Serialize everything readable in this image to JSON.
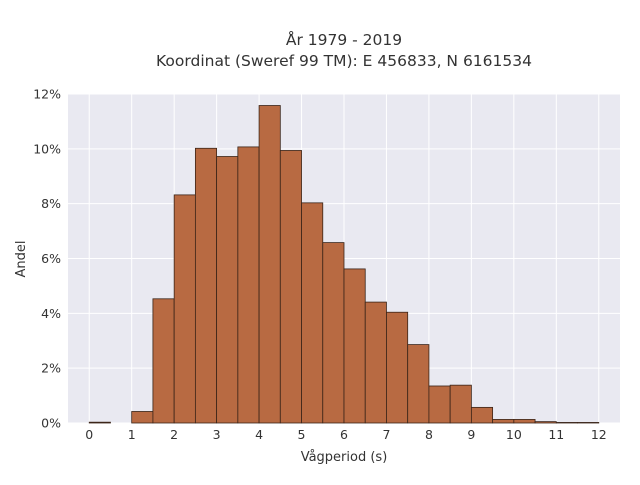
{
  "title": "År 1979 - 2019",
  "subtitle": "Koordinat (Sweref 99 TM): E 456833, N 6161534",
  "colors": {
    "plot_background": "#e9e9f1",
    "bar_fill": "#b86a42",
    "bar_stroke": "#3a2418",
    "grid": "#ffffff"
  },
  "chart_data": {
    "type": "bar",
    "title": "År 1979 - 2019",
    "subtitle": "Koordinat (Sweref 99 TM): E 456833, N 6161534",
    "xlabel": "Vågperiod (s)",
    "ylabel": "Andel",
    "bin_width": 0.5,
    "bins_left_edge": [
      0,
      0.5,
      1,
      1.5,
      2,
      2.5,
      3,
      3.5,
      4,
      4.5,
      5,
      5.5,
      6,
      6.5,
      7,
      7.5,
      8,
      8.5,
      9,
      9.5,
      10,
      10.5,
      11,
      11.5
    ],
    "values": [
      0.03,
      0,
      0.42,
      4.53,
      8.32,
      10.02,
      9.72,
      10.07,
      11.58,
      9.94,
      8.03,
      6.58,
      5.62,
      4.41,
      4.04,
      2.86,
      1.35,
      1.38,
      0.57,
      0.13,
      0.13,
      0.05,
      0.02,
      0.02
    ],
    "xlim": [
      -0.5,
      12.5
    ],
    "ylim": [
      0,
      12
    ],
    "xticks": [
      0,
      1,
      2,
      3,
      4,
      5,
      6,
      7,
      8,
      9,
      10,
      11,
      12
    ],
    "xtick_labels": [
      "0",
      "1",
      "2",
      "3",
      "4",
      "5",
      "6",
      "7",
      "8",
      "9",
      "10",
      "11",
      "12"
    ],
    "yticks": [
      0,
      2,
      4,
      6,
      8,
      10,
      12
    ],
    "ytick_labels": [
      "0%",
      "2%",
      "4%",
      "6%",
      "8%",
      "10%",
      "12%"
    ],
    "grid": true,
    "legend": "none"
  }
}
